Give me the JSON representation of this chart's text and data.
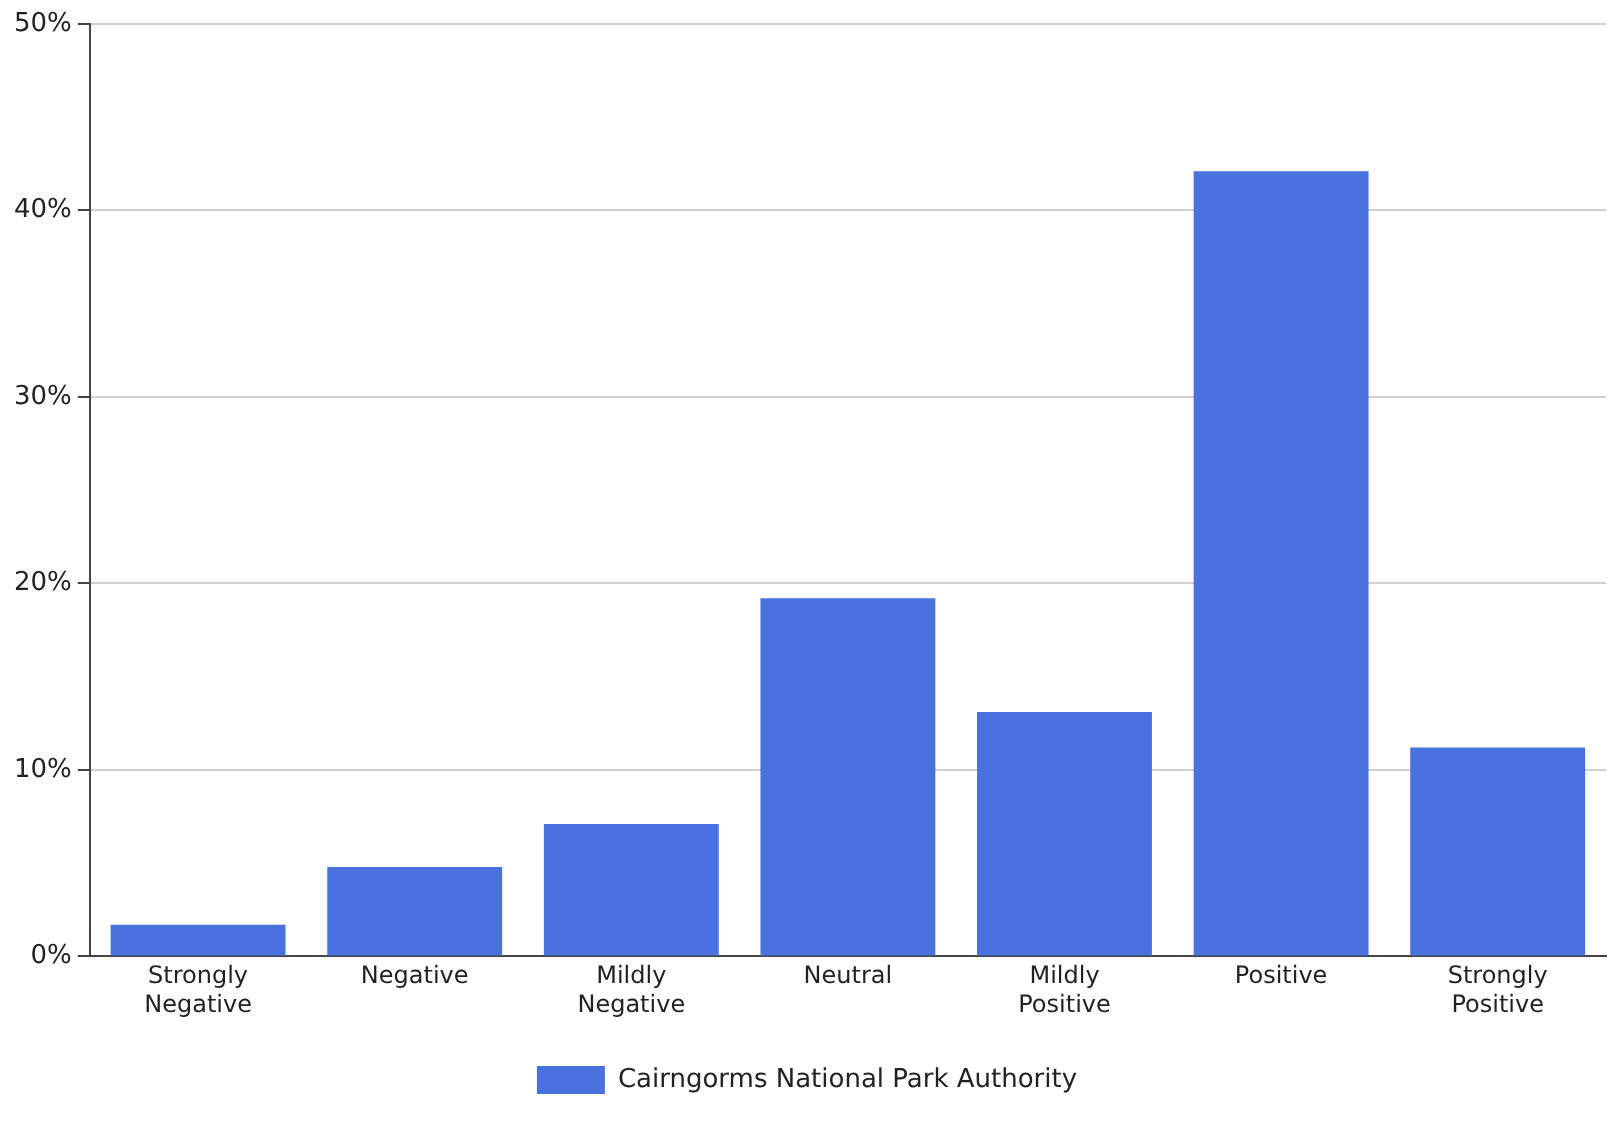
{
  "chart_data": {
    "type": "bar",
    "categories": [
      "Strongly Negative",
      "Negative",
      "Mildly Negative",
      "Neutral",
      "Mildly Positive",
      "Positive",
      "Strongly Positive"
    ],
    "series": [
      {
        "name": "Cairngorms National Park Authority",
        "color": "#4a72de",
        "values": [
          1.7,
          4.8,
          7.1,
          19.2,
          13.1,
          42.1,
          11.2
        ]
      }
    ],
    "ylim": [
      0,
      50
    ],
    "yticks": [
      {
        "value": 0,
        "label": "0%"
      },
      {
        "value": 10,
        "label": "10%"
      },
      {
        "value": 20,
        "label": "20%"
      },
      {
        "value": 30,
        "label": "30%"
      },
      {
        "value": 40,
        "label": "40%"
      },
      {
        "value": 50,
        "label": "50%"
      }
    ],
    "grid": "y",
    "legend": "bottom"
  }
}
